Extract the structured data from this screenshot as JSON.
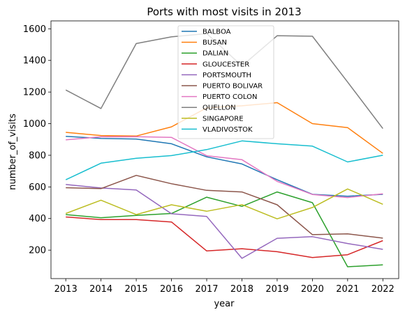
{
  "chart_data": {
    "type": "line",
    "title": "Ports with most visits in 2013",
    "xlabel": "year",
    "ylabel": "number_of_visits",
    "x": [
      2013,
      2014,
      2015,
      2016,
      2017,
      2018,
      2019,
      2020,
      2021,
      2022
    ],
    "xlim": [
      2012.58,
      2022.45
    ],
    "ylim": [
      20,
      1650
    ],
    "yticks": [
      200,
      400,
      600,
      800,
      1000,
      1200,
      1400,
      1600
    ],
    "grid": false,
    "legend_position": "upper-center",
    "series": [
      {
        "name": "BALBOA",
        "color": "#1f77b4",
        "values": [
          920,
          907,
          903,
          873,
          790,
          745,
          645,
          553,
          541,
          553
        ]
      },
      {
        "name": "BUSAN",
        "color": "#ff7f0e",
        "values": [
          945,
          925,
          922,
          980,
          1100,
          1113,
          1133,
          1000,
          975,
          812
        ]
      },
      {
        "name": "DALIAN",
        "color": "#2ca02c",
        "values": [
          425,
          405,
          420,
          432,
          535,
          477,
          568,
          500,
          95,
          107
        ]
      },
      {
        "name": "GLOUCESTER",
        "color": "#d62728",
        "values": [
          410,
          393,
          393,
          378,
          195,
          209,
          190,
          153,
          171,
          260
        ]
      },
      {
        "name": "PORTSMOUTH",
        "color": "#9467bd",
        "values": [
          615,
          593,
          581,
          430,
          413,
          148,
          275,
          285,
          242,
          205
        ]
      },
      {
        "name": "PUERTO BOLIVAR",
        "color": "#8c564b",
        "values": [
          595,
          589,
          673,
          620,
          578,
          568,
          487,
          298,
          303,
          276
        ]
      },
      {
        "name": "PUERTO COLON",
        "color": "#e377c2",
        "values": [
          898,
          917,
          918,
          913,
          797,
          772,
          635,
          552,
          533,
          556
        ]
      },
      {
        "name": "QUELLON",
        "color": "#7f7f7f",
        "values": [
          1213,
          1096,
          1507,
          1549,
          1570,
          1365,
          1556,
          1553,
          1263,
          969
        ]
      },
      {
        "name": "SINGAPORE",
        "color": "#bcbd22",
        "values": [
          432,
          516,
          425,
          487,
          446,
          488,
          398,
          470,
          587,
          490
        ]
      },
      {
        "name": "VLADIVOSTOK",
        "color": "#17becf",
        "values": [
          645,
          750,
          781,
          798,
          836,
          891,
          873,
          858,
          758,
          800
        ]
      }
    ]
  }
}
